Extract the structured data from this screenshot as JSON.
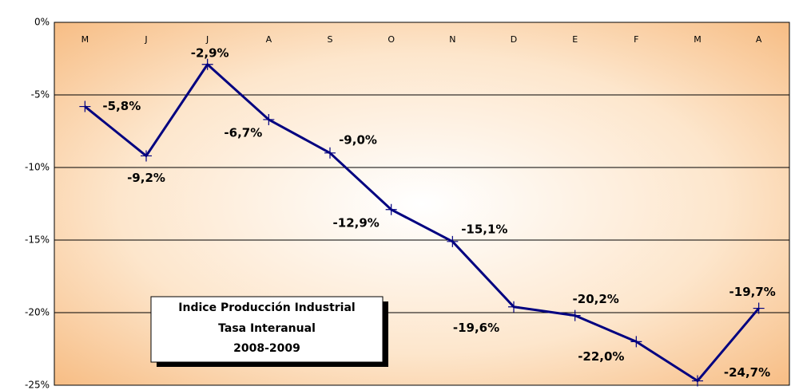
{
  "chart_data": {
    "type": "line",
    "title": "Indice Producción Industrial",
    "subtitle": "Tasa Interanual",
    "period": "2008-2009",
    "categories": [
      "M",
      "J",
      "J",
      "A",
      "S",
      "O",
      "N",
      "D",
      "E",
      "F",
      "M",
      "A"
    ],
    "series": [
      {
        "name": "Tasa Interanual",
        "color": "#000080",
        "values": [
          -5.8,
          -9.2,
          -2.9,
          -6.7,
          -9.0,
          -12.9,
          -15.1,
          -19.6,
          -20.2,
          -22.0,
          -24.7,
          -19.7
        ],
        "value_labels": [
          "-5,8%",
          "-9,2%",
          "-2,9%",
          "-6,7%",
          "-9,0%",
          "-12,9%",
          "-15,1%",
          "-19,6%",
          "-20,2%",
          "-22,0%",
          "-24,7%",
          "-19,7%"
        ]
      }
    ],
    "ylim": [
      -25,
      0
    ],
    "yticks": [
      {
        "value": 0,
        "label": "0%"
      },
      {
        "value": -5,
        "label": "-5%"
      },
      {
        "value": -10,
        "label": "-10%"
      },
      {
        "value": -15,
        "label": "-15%"
      },
      {
        "value": -20,
        "label": "-20%"
      },
      {
        "value": -25,
        "label": "-25%"
      }
    ],
    "grid": true
  }
}
